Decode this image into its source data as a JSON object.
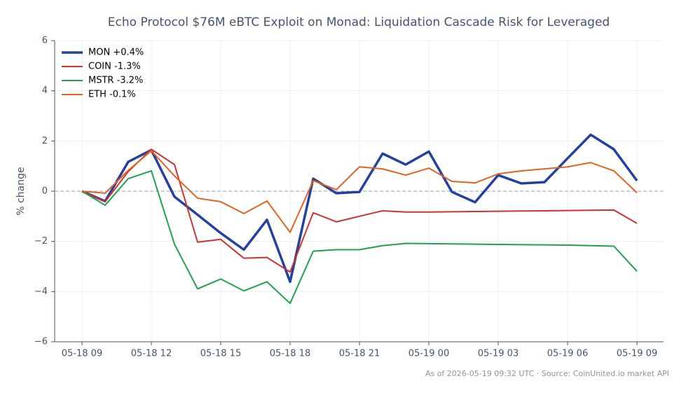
{
  "chart_data": {
    "type": "line",
    "title": "Echo Protocol $76M eBTC Exploit on Monad: Liquidation Cascade Risk for Leveraged",
    "ylabel": "% change",
    "footer": "As of 2026-05-19 09:32 UTC · Source: CoinUnited.io market API",
    "categories": [
      "05-18 09",
      null,
      null,
      "05-18 12",
      null,
      null,
      "05-18 15",
      null,
      null,
      "05-18 18",
      null,
      null,
      "05-18 21",
      null,
      null,
      "05-19 00",
      null,
      null,
      "05-19 03",
      null,
      null,
      "05-19 06",
      null,
      null,
      "05-19 09"
    ],
    "series": [
      {
        "name": "MON +0.4%",
        "color": "#2541a0",
        "width": 3.5,
        "values": [
          0,
          -0.4,
          1.17,
          1.64,
          -0.22,
          -0.94,
          -1.67,
          -2.33,
          -1.14,
          -3.61,
          0.5,
          -0.08,
          -0.03,
          1.5,
          1.06,
          1.58,
          -0.03,
          -0.44,
          0.64,
          0.31,
          0.36,
          1.31,
          2.25,
          1.67,
          0.42
        ]
      },
      {
        "name": "COIN -1.3%",
        "color": "#d0312d",
        "width": 2,
        "values": [
          0,
          -0.42,
          0.78,
          1.67,
          1.06,
          -2.03,
          -1.92,
          -2.67,
          -2.64,
          -3.22,
          -0.86,
          -1.22,
          -1.0,
          -0.78,
          -0.83,
          -0.83,
          -0.82,
          -0.81,
          -0.8,
          -0.79,
          -0.78,
          -0.77,
          -0.76,
          -0.75,
          -1.28
        ]
      },
      {
        "name": "MSTR -3.2%",
        "color": "#23a04f",
        "width": 2,
        "values": [
          0,
          -0.56,
          0.5,
          0.81,
          -2.11,
          -3.89,
          -3.5,
          -3.97,
          -3.61,
          -4.47,
          -2.39,
          -2.33,
          -2.33,
          -2.17,
          -2.08,
          -2.09,
          -2.1,
          -2.11,
          -2.12,
          -2.13,
          -2.14,
          -2.15,
          -2.17,
          -2.19,
          -3.19
        ]
      },
      {
        "name": "ETH -0.1%",
        "color": "#e0641f",
        "width": 2,
        "values": [
          0,
          -0.08,
          0.83,
          1.61,
          0.61,
          -0.28,
          -0.42,
          -0.89,
          -0.39,
          -1.64,
          0.42,
          0.06,
          0.97,
          0.89,
          0.64,
          0.92,
          0.39,
          0.33,
          0.69,
          0.81,
          0.89,
          0.97,
          1.14,
          0.81,
          -0.06
        ]
      }
    ],
    "ylim": [
      -6,
      6
    ],
    "yticks": [
      {
        "value": -6,
        "label": "−6"
      },
      {
        "value": -4,
        "label": "−4"
      },
      {
        "value": -2,
        "label": "−2"
      },
      0,
      2,
      4,
      6
    ],
    "grid": true,
    "legend": "upper left",
    "zero_line": true
  }
}
